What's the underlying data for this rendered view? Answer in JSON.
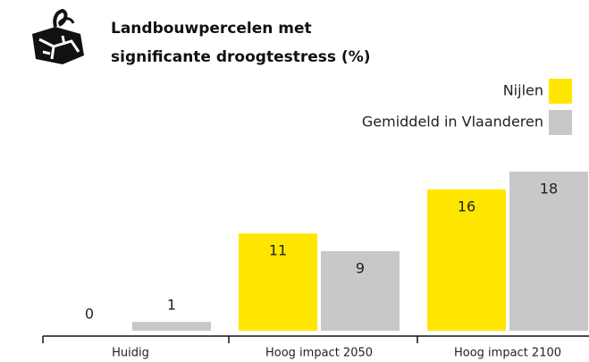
{
  "chart_data": {
    "type": "bar",
    "title": "Landbouwpercelen met significante droogtestress (%)",
    "categories": [
      "Huidig",
      "Hoog impact 2050",
      "Hoog impact 2100"
    ],
    "series": [
      {
        "name": "Nijlen",
        "color": "#ffe600",
        "values": [
          0,
          11,
          16
        ]
      },
      {
        "name": "Gemiddeld in Vlaanderen",
        "color": "#c8c8c8",
        "values": [
          1,
          9,
          18
        ]
      }
    ],
    "ylim": [
      0,
      18
    ],
    "legend": "top-right"
  }
}
